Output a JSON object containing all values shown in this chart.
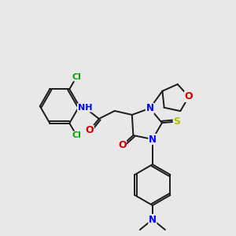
{
  "background_color": "#e8e8e8",
  "bond_color": "#1a1a1a",
  "atom_colors": {
    "N": "#0000ff",
    "O": "#cc0000",
    "S": "#bbbb00",
    "Cl": "#00aa00",
    "H": "#666666",
    "C": "#1a1a1a"
  },
  "font_size_atom": 8.5,
  "figsize": [
    3.0,
    3.0
  ],
  "dpi": 100
}
